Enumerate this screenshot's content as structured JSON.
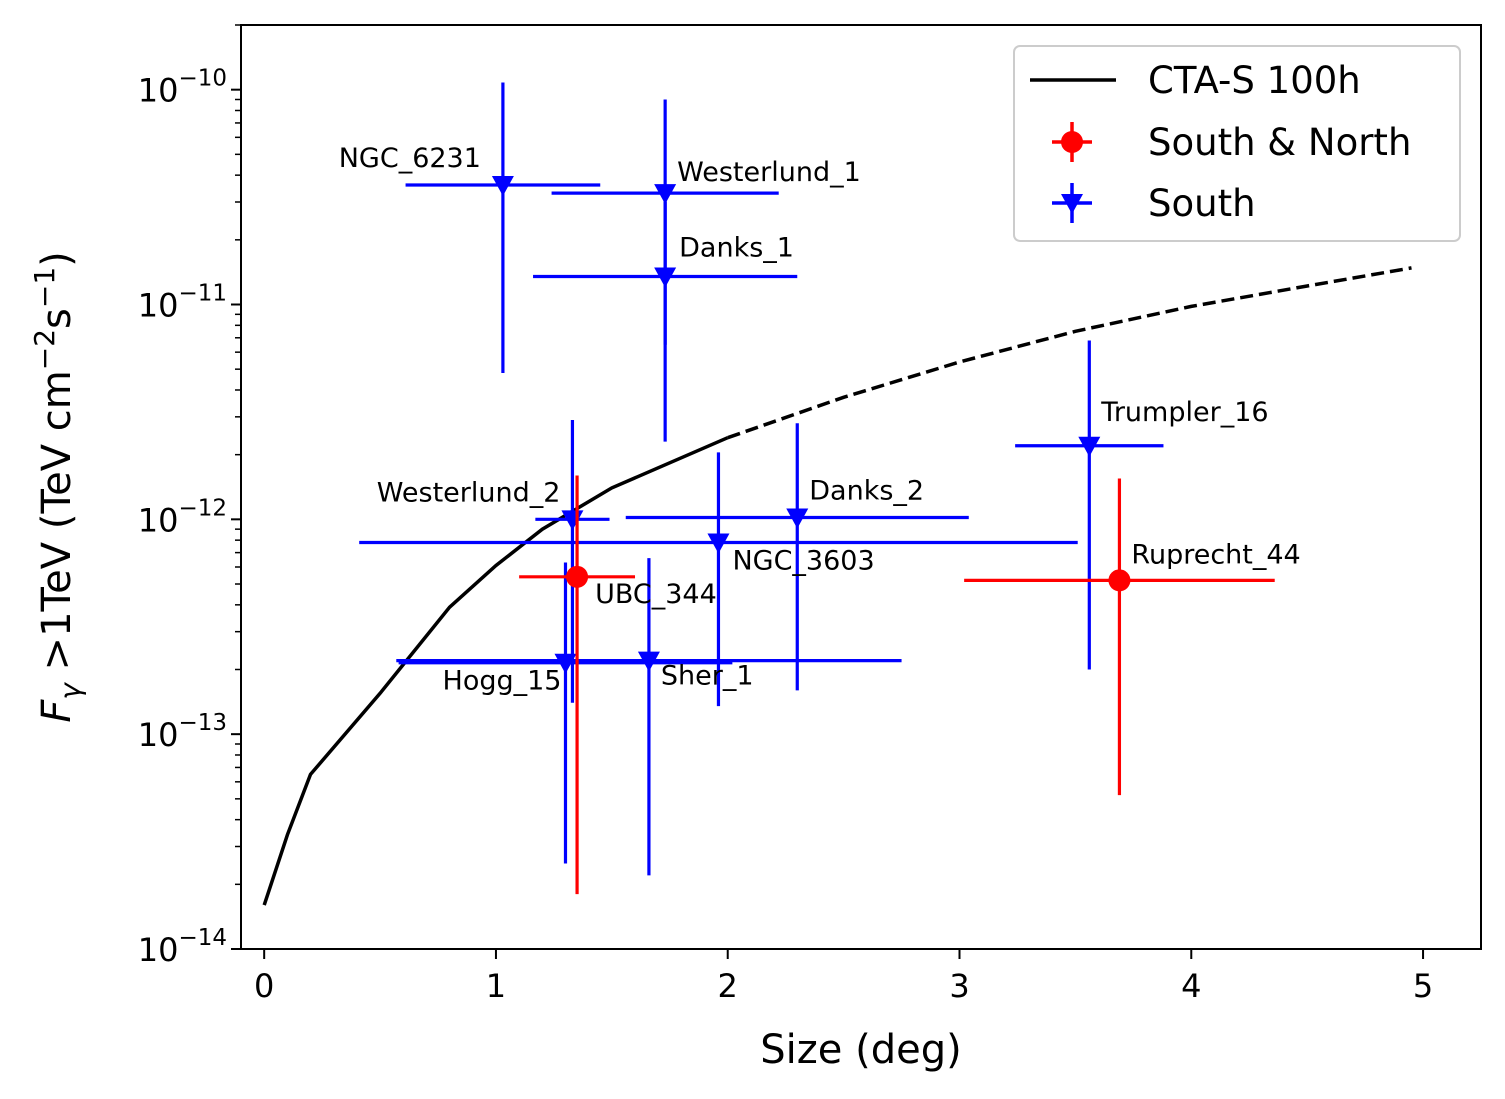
{
  "chart_data": {
    "type": "scatter",
    "title": "",
    "xlabel": "Size (deg)",
    "ylabel": {
      "main": "F",
      "sub": "γ",
      "rest": " >1TeV (TeV cm",
      "exp1": "−2",
      "mid": "s",
      "exp2": "−1",
      "end": ")"
    },
    "xlim": [
      -0.1,
      5.25
    ],
    "ylim": [
      1e-14,
      2e-10
    ],
    "yscale": "log",
    "x_ticks": [
      0,
      1,
      2,
      3,
      4,
      5
    ],
    "x_tick_labels": [
      "0",
      "1",
      "2",
      "3",
      "4",
      "5"
    ],
    "y_ticks": [
      {
        "value": 1e-10,
        "base": "10",
        "exp": "−10"
      },
      {
        "value": 1e-11,
        "base": "10",
        "exp": "−11"
      },
      {
        "value": 1e-12,
        "base": "10",
        "exp": "−12"
      },
      {
        "value": 1e-13,
        "base": "10",
        "exp": "−13"
      },
      {
        "value": 1e-14,
        "base": "10",
        "exp": "−14"
      }
    ],
    "sensitivity_curve": {
      "name": "CTA-S 100h",
      "color": "#000000",
      "solid": [
        [
          0,
          1.6e-14
        ],
        [
          0.1,
          3.4e-14
        ],
        [
          0.2,
          6.5e-14
        ],
        [
          0.5,
          1.55e-13
        ],
        [
          0.8,
          3.9e-13
        ],
        [
          1.0,
          6.1e-13
        ],
        [
          1.2,
          9e-13
        ],
        [
          1.5,
          1.4e-12
        ],
        [
          2.0,
          2.4e-12
        ]
      ],
      "dashed": [
        [
          2.0,
          2.4e-12
        ],
        [
          2.5,
          3.7e-12
        ],
        [
          3.0,
          5.4e-12
        ],
        [
          3.5,
          7.5e-12
        ],
        [
          4.0,
          9.8e-12
        ],
        [
          4.5,
          1.22e-11
        ],
        [
          4.95,
          1.48e-11
        ]
      ]
    },
    "series": [
      {
        "name": "South & North",
        "color": "#ff0000",
        "marker": "circle",
        "points": [
          {
            "label": "UBC_344",
            "x": 1.35,
            "xerr": [
              0.25,
              0.25
            ],
            "y": 5.4e-13,
            "ylo": 1.8e-14,
            "yhi": 1.6e-12
          },
          {
            "label": "Ruprecht_44",
            "x": 3.69,
            "xerr": [
              0.67,
              0.67
            ],
            "y": 5.2e-13,
            "ylo": 5.2e-14,
            "yhi": 1.55e-12
          }
        ]
      },
      {
        "name": "South",
        "color": "#0000ff",
        "marker": "triangle-down",
        "points": [
          {
            "label": "NGC_6231",
            "x": 1.03,
            "xerr": [
              0.42,
              0.42
            ],
            "y": 3.6e-11,
            "ylo": 4.8e-12,
            "yhi": 1.08e-10
          },
          {
            "label": "Westerlund_1",
            "x": 1.73,
            "xerr": [
              0.49,
              0.49
            ],
            "y": 3.3e-11,
            "ylo": 6.5e-12,
            "yhi": 9e-11
          },
          {
            "label": "Danks_1",
            "x": 1.73,
            "xerr": [
              0.57,
              0.57
            ],
            "y": 1.35e-11,
            "ylo": 2.3e-12,
            "yhi": 3e-11
          },
          {
            "label": "Trumpler_16",
            "x": 3.56,
            "xerr": [
              0.32,
              0.32
            ],
            "y": 2.2e-12,
            "ylo": 2e-13,
            "yhi": 6.8e-12
          },
          {
            "label": "Westerlund_2",
            "x": 1.33,
            "xerr": [
              0.16,
              0.16
            ],
            "y": 1e-12,
            "ylo": 1.4e-13,
            "yhi": 2.9e-12
          },
          {
            "label": "Danks_2",
            "x": 2.3,
            "xerr": [
              0.74,
              0.74
            ],
            "y": 1.02e-12,
            "ylo": 1.6e-13,
            "yhi": 2.8e-12
          },
          {
            "label": "NGC_3603",
            "x": 1.96,
            "xerr": [
              1.55,
              1.55
            ],
            "y": 7.8e-13,
            "ylo": 1.35e-13,
            "yhi": 2.05e-12
          },
          {
            "label": "Hogg_15",
            "x": 1.3,
            "xerr": [
              0.72,
              0.72
            ],
            "y": 2.15e-13,
            "ylo": 2.5e-14,
            "yhi": 6.3e-13
          },
          {
            "label": "Sher_1",
            "x": 1.66,
            "xerr": [
              1.09,
              1.09
            ],
            "y": 2.2e-13,
            "ylo": 2.2e-14,
            "yhi": 6.6e-13
          }
        ]
      }
    ],
    "legend": {
      "placement": "top-right",
      "entries": [
        "CTA-S 100h",
        "South & North",
        "South"
      ]
    }
  }
}
